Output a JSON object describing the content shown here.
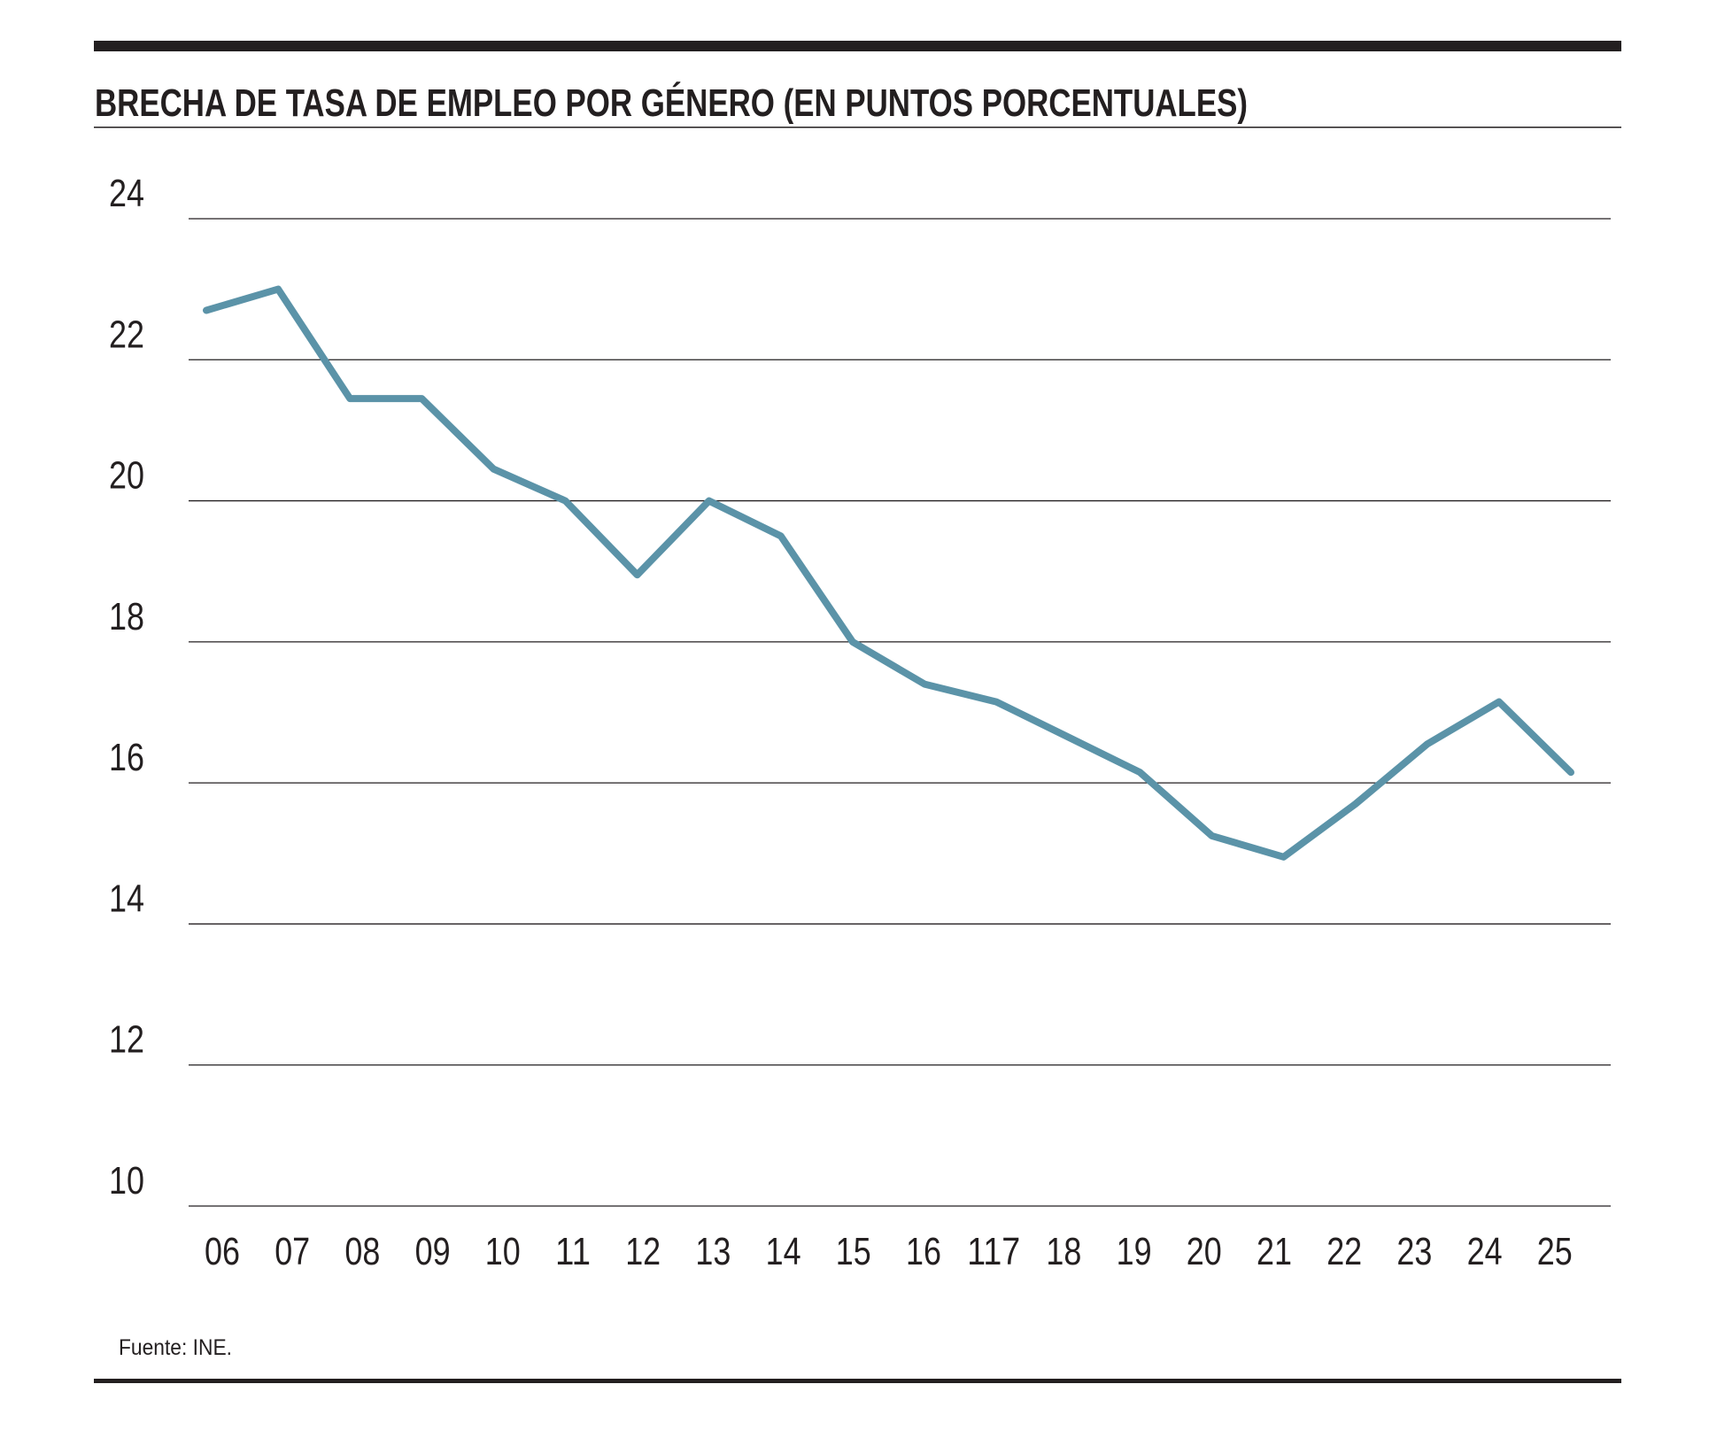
{
  "chart_data": {
    "type": "line",
    "title": "BRECHA DE TASA DE EMPLEO POR GÉNERO (EN PUNTOS PORCENTUALES)",
    "source": "Fuente: INE.",
    "xlabel": "",
    "ylabel": "",
    "categories": [
      "06",
      "07",
      "08",
      "09",
      "10",
      "11",
      "12",
      "13",
      "14",
      "15",
      "16",
      "117",
      "18",
      "19",
      "20",
      "21",
      "22",
      "23",
      "24",
      "25"
    ],
    "series": [
      {
        "values": [
          22.7,
          23.0,
          21.45,
          21.45,
          20.45,
          20.0,
          18.95,
          20.0,
          19.5,
          18.0,
          17.4,
          17.15,
          16.65,
          16.15,
          15.25,
          14.95,
          15.7,
          16.55,
          17.15,
          16.15
        ]
      }
    ],
    "yticks": [
      "24",
      "22",
      "20",
      "18",
      "16",
      "14",
      "12",
      "10"
    ],
    "ylim": [
      10,
      24
    ],
    "grid": true,
    "legend": "none",
    "colors": {
      "line": "#5b93a8",
      "rules": "#231f20"
    }
  }
}
